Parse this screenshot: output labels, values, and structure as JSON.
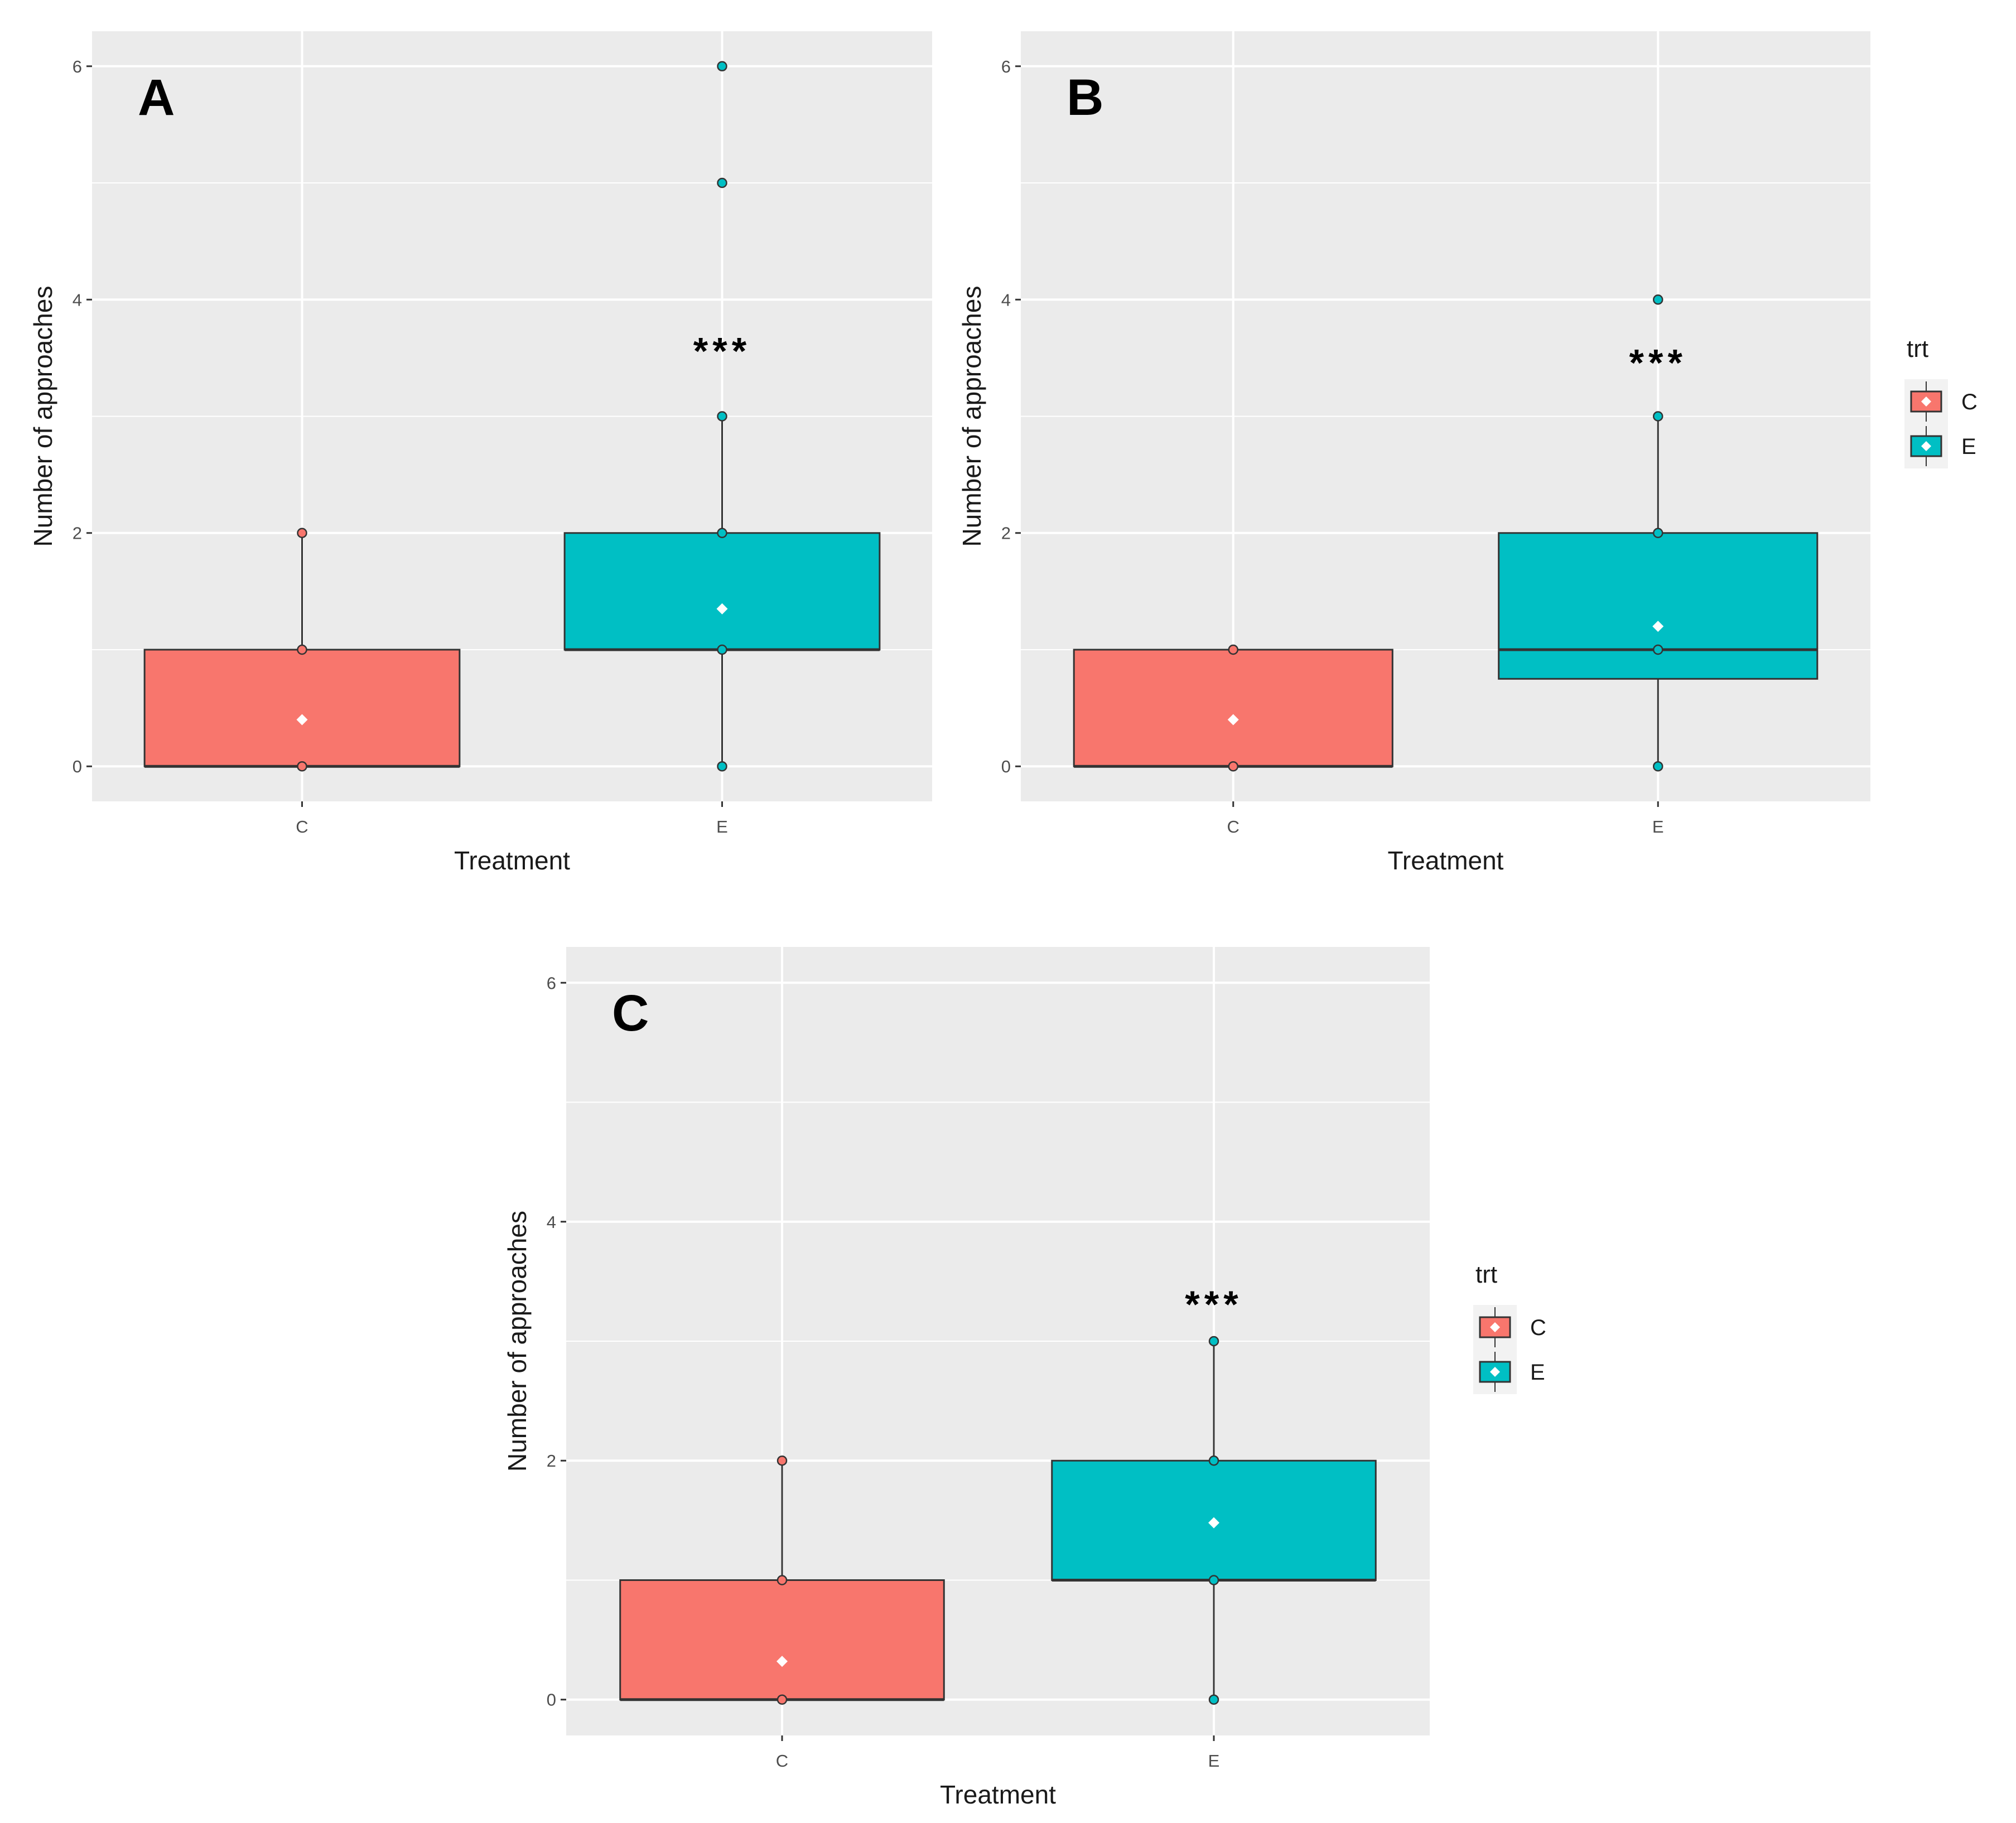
{
  "colors": {
    "C": "#F8766D",
    "E": "#00BFC4",
    "panel_bg": "#EBEBEB",
    "grid": "#FFFFFF",
    "mean_marker": "#FFFFFF",
    "outline": "#333333"
  },
  "chart_data": [
    {
      "type": "boxplot",
      "panel": "A",
      "xlabel": "Treatment",
      "ylabel": "Number of approaches",
      "ylim": [
        -0.3,
        6.3
      ],
      "yticks": [
        0,
        2,
        4,
        6
      ],
      "categories": [
        "C",
        "E"
      ],
      "significance": "***",
      "significance_y": 3.45,
      "legend": null,
      "boxes": [
        {
          "group": "C",
          "q1": 0,
          "median": 0,
          "q3": 1,
          "whisker_low": 0,
          "whisker_high": 2,
          "mean": 0.4,
          "points": [
            0,
            1,
            2
          ]
        },
        {
          "group": "E",
          "q1": 1,
          "median": 1,
          "q3": 2,
          "whisker_low": 0,
          "whisker_high": 3,
          "mean": 1.35,
          "points": [
            0,
            1,
            2,
            3,
            5,
            6
          ]
        }
      ]
    },
    {
      "type": "boxplot",
      "panel": "B",
      "xlabel": "Treatment",
      "ylabel": "Number of approaches",
      "ylim": [
        -0.3,
        6.3
      ],
      "yticks": [
        0,
        2,
        4,
        6
      ],
      "categories": [
        "C",
        "E"
      ],
      "significance": "***",
      "significance_y": 3.35,
      "legend": {
        "title": "trt",
        "entries": [
          "C",
          "E"
        ]
      },
      "boxes": [
        {
          "group": "C",
          "q1": 0,
          "median": 0,
          "q3": 1,
          "whisker_low": 0,
          "whisker_high": 1,
          "mean": 0.4,
          "points": [
            0,
            1
          ]
        },
        {
          "group": "E",
          "q1": 0.75,
          "median": 1,
          "q3": 2,
          "whisker_low": 0,
          "whisker_high": 3,
          "mean": 1.2,
          "points": [
            0,
            1,
            2,
            3,
            4
          ]
        }
      ]
    },
    {
      "type": "boxplot",
      "panel": "C",
      "xlabel": "Treatment",
      "ylabel": "Number of approaches",
      "ylim": [
        -0.3,
        6.3
      ],
      "yticks": [
        0,
        2,
        4,
        6
      ],
      "categories": [
        "C",
        "E"
      ],
      "significance": "***",
      "significance_y": 3.2,
      "legend": {
        "title": "trt",
        "entries": [
          "C",
          "E"
        ]
      },
      "boxes": [
        {
          "group": "C",
          "q1": 0,
          "median": 0,
          "q3": 1,
          "whisker_low": 0,
          "whisker_high": 2,
          "mean": 0.32,
          "points": [
            0,
            1,
            2
          ]
        },
        {
          "group": "E",
          "q1": 1,
          "median": 1,
          "q3": 2,
          "whisker_low": 0,
          "whisker_high": 3,
          "mean": 1.48,
          "points": [
            0,
            1,
            2,
            3
          ]
        }
      ]
    }
  ]
}
